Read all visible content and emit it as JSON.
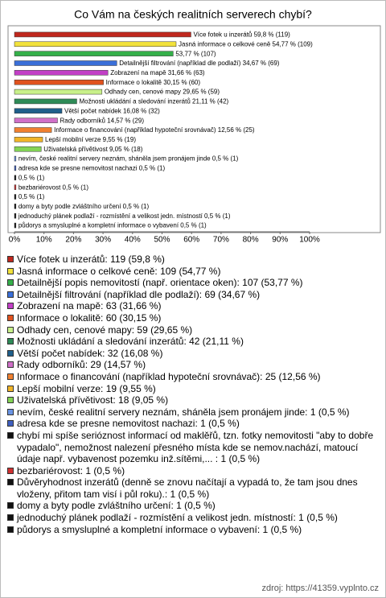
{
  "chart_data": {
    "type": "bar",
    "orientation": "horizontal",
    "title": "Co Vám na českých realitních serverech chybí?",
    "values": [
      59.8,
      54.77,
      53.77,
      34.67,
      31.66,
      30.15,
      29.65,
      21.11,
      16.08,
      14.57,
      12.56,
      9.55,
      9.05,
      0.5,
      0.5,
      0.5,
      0.5,
      0.5,
      0.5,
      0.5,
      0.5
    ],
    "value_labels": [
      "Více fotek u inzerátů 59,8 % (119)",
      "Jasná informace o celkové ceně 54,77 % (109)",
      "53,77 % (107)",
      "Detailnější filtrování (například dle podlaží) 34,67 % (69)",
      "Zobrazení na mapě 31,66 % (63)",
      "Informace o lokalitě 30,15 % (60)",
      "Odhady cen, cenové mapy 29,65 % (59)",
      "Možnosti ukládání a sledování inzerátů 21,11 % (42)",
      "Větší počet nabídek 16,08 % (32)",
      "Rady odborníků 14,57 % (29)",
      "Informace o financování (například hypoteční srovnávač) 12,56 % (25)",
      "Lepší mobilní verze 9,55 % (19)",
      "Uživatelská přívětivost 9,05 % (18)",
      "nevím, české realitní servery neznám, sháněla jsem pronájem jinde 0,5 % (1)",
      "adresa kde se presne nemovitost nachazi 0,5 % (1)",
      "0,5 % (1)",
      "bezbariérovost 0,5 % (1)",
      "0,5 % (1)",
      "domy a byty podle zvláštního určení 0,5 % (1)",
      "jednoduchý plánek podlaží - rozmístění a velikost jedn. místností 0,5 % (1)",
      "půdorys a smysluplné a kompletní informace o vybavení 0,5 % (1)"
    ],
    "colors": [
      "#c0281e",
      "#f2e23c",
      "#35b04a",
      "#3a6fd8",
      "#c23fc6",
      "#e0521f",
      "#c8f08a",
      "#2e8b57",
      "#1f5f8b",
      "#d070c8",
      "#f08030",
      "#f0b428",
      "#84d455",
      "#6a94e4",
      "#3f5fc0",
      "#111111",
      "#d03030",
      "#111111",
      "#111111",
      "#111111",
      "#111111"
    ],
    "legend": [
      "Více fotek u inzerátů: 119 (59,8 %)",
      "Jasná informace o celkové ceně: 109 (54,77 %)",
      "Detailnější popis nemovitostí (např. orientace oken): 107 (53,77 %)",
      "Detailnější filtrování (například dle podlaží): 69 (34,67 %)",
      "Zobrazení na mapě: 63 (31,66 %)",
      "Informace o lokalitě: 60 (30,15 %)",
      "Odhady cen, cenové mapy: 59 (29,65 %)",
      "Možnosti ukládání a sledování inzerátů: 42 (21,11 %)",
      "Větší počet nabídek: 32 (16,08 %)",
      "Rady odborníků: 29 (14,57 %)",
      "Informace o financování (například hypoteční srovnávač): 25 (12,56 %)",
      "Lepší mobilní verze: 19 (9,55 %)",
      "Uživatelská přívětivost: 18 (9,05 %)",
      "nevím, české realitní servery neznám, sháněla jsem pronájem jinde: 1 (0,5 %)",
      "adresa kde se presne nemovitost nachazi: 1 (0,5 %)",
      "chybí mi spíše serióznost informací od maklěřů, tzn. fotky nemovitosti \"aby to dobře vypadalo\", nemožnost nalezení přesného místa kde se nemov.nachází, matoucí údaje např. vybavenost pozemku inž.sítěmi,... : 1 (0,5 %)",
      "bezbariérovost: 1 (0,5 %)",
      "Důvěryhodnost inzerátů (denně se znovu načítají a vypadá to, že tam jsou dnes vloženy, přitom tam visí i půl roku).: 1 (0,5 %)",
      "domy a byty podle zvláštního určení: 1 (0,5 %)",
      "jednoduchý plánek podlaží - rozmístění a velikost jedn. místností: 1 (0,5 %)",
      "půdorys a smysluplné a kompletní informace o vybavení: 1 (0,5 %)"
    ],
    "xlim": [
      0,
      100
    ],
    "xticks": [
      {
        "value": 0,
        "label": "0%"
      },
      {
        "value": 10,
        "label": "10%"
      },
      {
        "value": 20,
        "label": "20%"
      },
      {
        "value": 30,
        "label": "30%"
      },
      {
        "value": 40,
        "label": "40%"
      },
      {
        "value": 50,
        "label": "50%"
      },
      {
        "value": 60,
        "label": "60%"
      },
      {
        "value": 70,
        "label": "70%"
      },
      {
        "value": 80,
        "label": "80%"
      },
      {
        "value": 90,
        "label": "90%"
      },
      {
        "value": 100,
        "label": "100%"
      }
    ],
    "source": "zdroj: https://41359.vyplnto.cz"
  }
}
